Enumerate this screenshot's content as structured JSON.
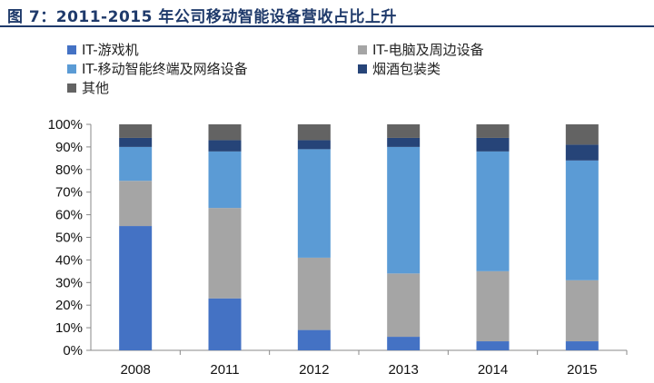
{
  "title": "图 7：2011-2015 年公司移动智能设备营收占比上升",
  "chart_data": {
    "type": "bar",
    "stacked": true,
    "categories": [
      "2008",
      "2011",
      "2012",
      "2013",
      "2014",
      "2015"
    ],
    "series": [
      {
        "name": "IT-游戏机",
        "color": "#4472c4",
        "values": [
          55,
          23,
          9,
          6,
          4,
          4
        ]
      },
      {
        "name": "IT-电脑及周边设备",
        "color": "#a5a5a5",
        "values": [
          20,
          40,
          32,
          28,
          31,
          27
        ]
      },
      {
        "name": "IT-移动智能终端及网络设备",
        "color": "#5b9bd5",
        "values": [
          15,
          25,
          48,
          56,
          53,
          53
        ]
      },
      {
        "name": "烟酒包装类",
        "color": "#264478",
        "values": [
          4,
          5,
          4,
          4,
          6,
          7
        ]
      },
      {
        "name": "其他",
        "color": "#636363",
        "values": [
          6,
          7,
          7,
          6,
          6,
          9
        ]
      }
    ],
    "ylim": [
      0,
      100
    ],
    "yticks": [
      "0%",
      "10%",
      "20%",
      "30%",
      "40%",
      "50%",
      "60%",
      "70%",
      "80%",
      "90%",
      "100%"
    ],
    "legend_position": "top-left",
    "grid": false
  }
}
